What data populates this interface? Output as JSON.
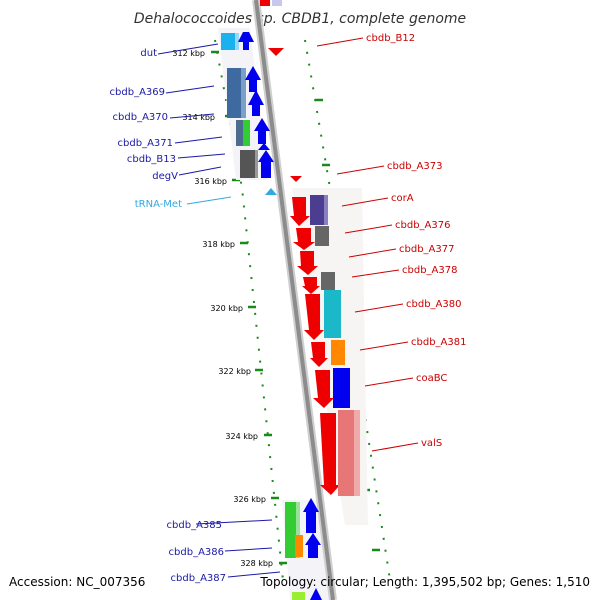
{
  "title": "Dehalococcoides sp. CBDB1, complete genome",
  "footer": {
    "accession": "Accession: NC_007356",
    "topology": "Topology: circular; Length: 1,395,502 bp; Genes: 1,510"
  },
  "kbp_ticks": [
    "312 kbp",
    "314 kbp",
    "316 kbp",
    "318 kbp",
    "320 kbp",
    "322 kbp",
    "324 kbp",
    "326 kbp",
    "328 kbp"
  ],
  "genes_left": [
    "dut",
    "cbdb_A369",
    "cbdb_A370",
    "cbdb_A371",
    "cbdb_B13",
    "degV",
    "tRNA-Met",
    "cbdb_A385",
    "cbdb_A386",
    "cbdb_A387"
  ],
  "genes_right": [
    "cbdb_B12",
    "cbdb_A373",
    "corA",
    "cbdb_A376",
    "cbdb_A377",
    "cbdb_A378",
    "cbdb_A380",
    "cbdb_A381",
    "coaBC",
    "valS"
  ],
  "colors": {
    "left_label": "#1a1aa6",
    "right_label": "#cc0000",
    "trna_label": "#33aadd",
    "backbone": "#8c8c8c",
    "tick": "#1a8a1a",
    "strand_forward": "#0000ee",
    "strand_reverse": "#ee0000"
  }
}
